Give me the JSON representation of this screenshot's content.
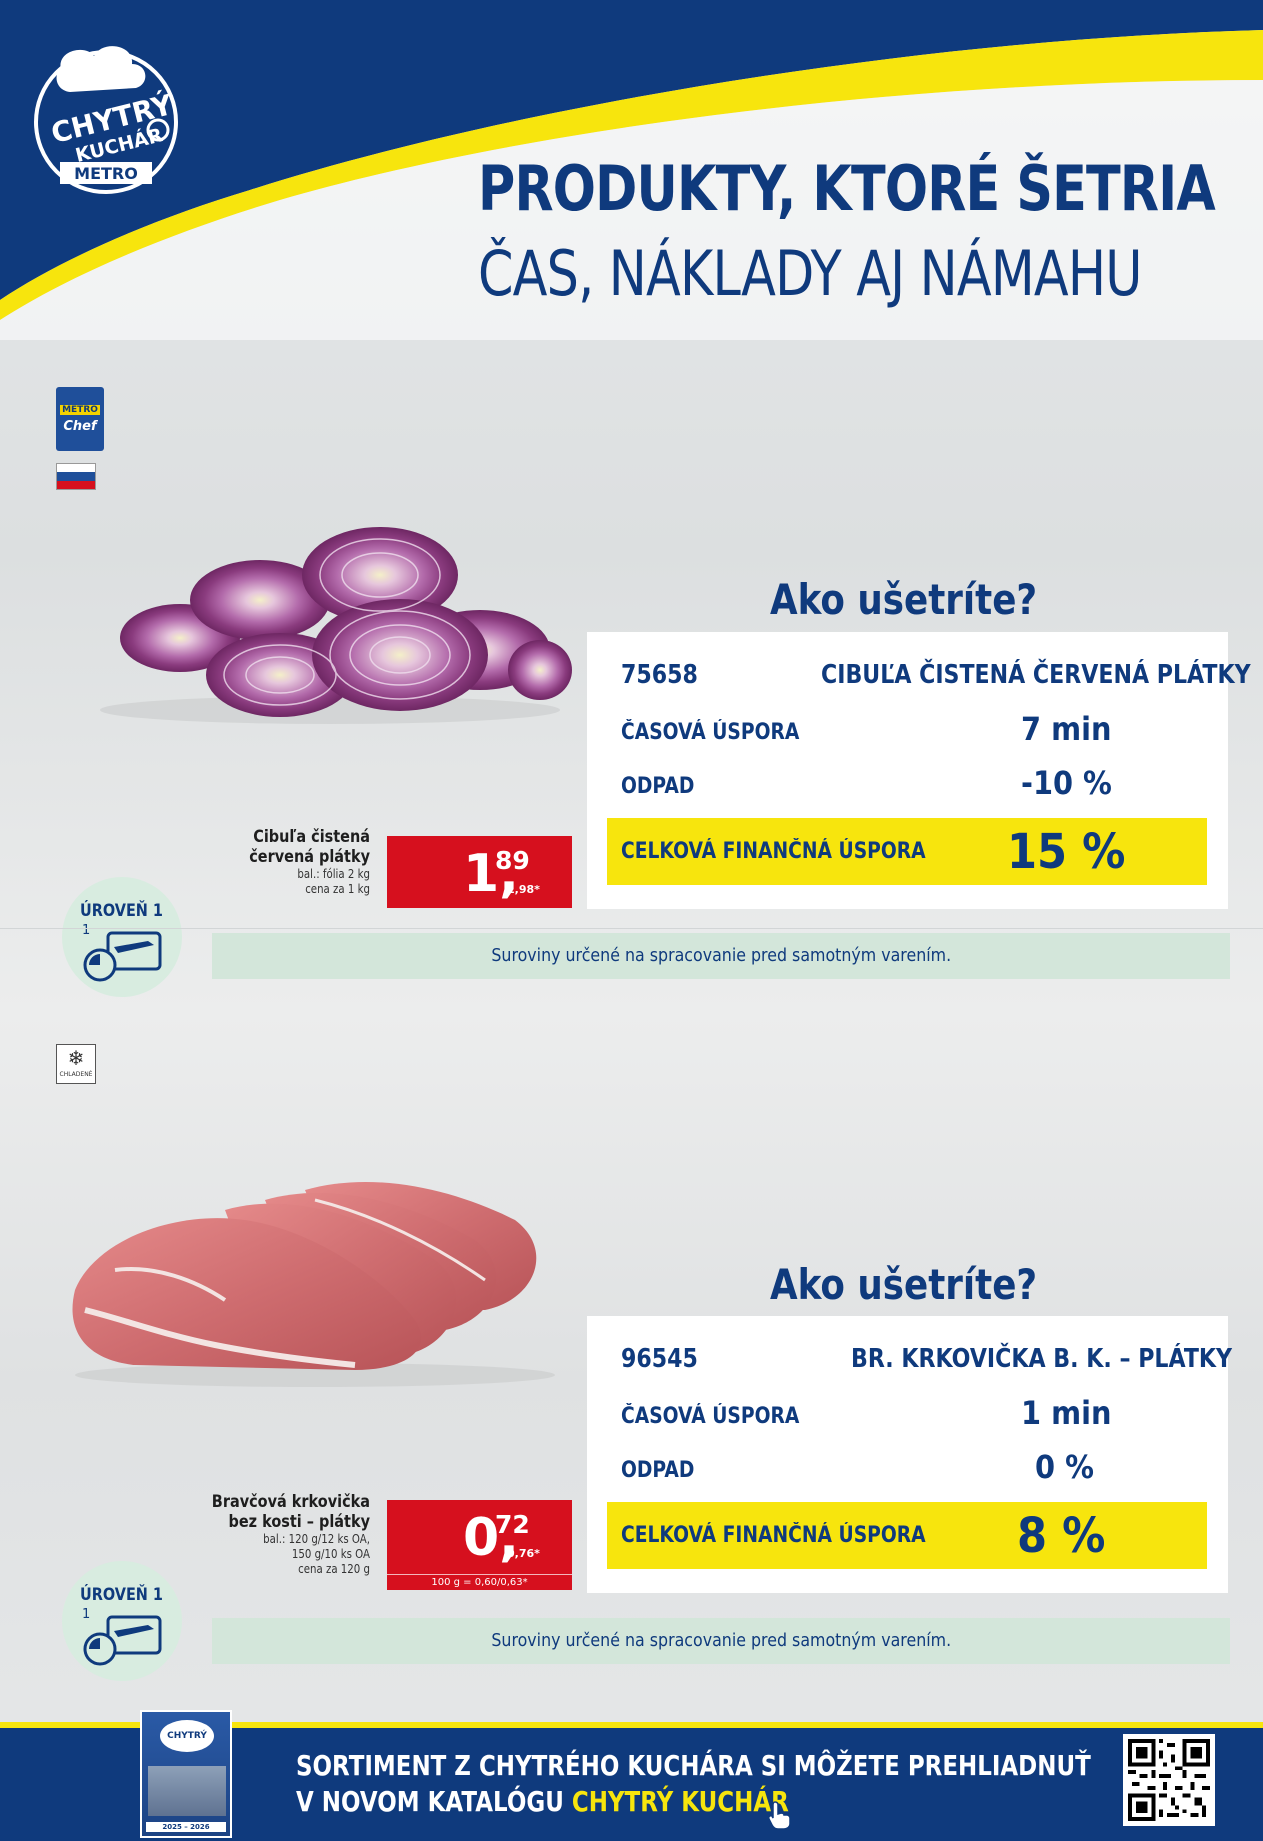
{
  "header": {
    "logo": {
      "line1": "CHYTRÝ",
      "line2": "KUCHÁR",
      "brand": "METRO"
    },
    "headline_line1": "PRODUKTY, KTORÉ ŠETRIA",
    "headline_line2": "ČAS, NÁKLADY AJ NÁMAHU"
  },
  "badges": {
    "metro_chef": {
      "brand": "METRO",
      "sub": "Chef"
    },
    "chilled_label": "CHLADENÉ"
  },
  "products": [
    {
      "ask_title": "Ako ušetríte?",
      "code": "75658",
      "code_name": "CIBUĽA ČISTENÁ ČERVENÁ PLÁTKY",
      "time_label": "ČASOVÁ ÚSPORA",
      "time_value": "7 min",
      "waste_label": "ODPAD",
      "waste_value": "-10 %",
      "total_label": "CELKOVÁ FINANČNÁ ÚSPORA",
      "total_value": "15 %",
      "desc_name_1": "Cibuľa čistená",
      "desc_name_2": "červená plátky",
      "desc_meta_1": "bal.: fólia 2 kg",
      "desc_meta_2": "cena za 1 kg",
      "price_int": "1,",
      "price_dec": "89",
      "price_vat": "1,98*",
      "price_unit": "",
      "level_title": "ÚROVEŇ 1",
      "level_num": "1",
      "info": "Suroviny určené na spracovanie pred samotným varením."
    },
    {
      "ask_title": "Ako ušetríte?",
      "code": "96545",
      "code_name": "BR. KRKOVIČKA B. K. – PLÁTKY",
      "time_label": "ČASOVÁ ÚSPORA",
      "time_value": "1 min",
      "waste_label": "ODPAD",
      "waste_value": "0 %",
      "total_label": "CELKOVÁ FINANČNÁ ÚSPORA",
      "total_value": "8 %",
      "desc_name_1": "Bravčová krkovička",
      "desc_name_2": "bez kosti – plátky",
      "desc_meta_1": "bal.: 120 g/12 ks OA,",
      "desc_meta_2": "150 g/10 ks OA",
      "desc_meta_3": "cena za 120 g",
      "price_int": "0,",
      "price_dec": "72",
      "price_vat": "0,76*",
      "price_unit": "100 g = 0,60/0,63*",
      "level_title": "ÚROVEŇ 1",
      "level_num": "1",
      "info": "Suroviny určené na spracovanie pred samotným varením."
    }
  ],
  "footer": {
    "line1": "SORTIMENT Z CHYTRÉHO KUCHÁRA SI MÔŽETE PREHLIADNUŤ",
    "line2_prefix": "V NOVOM KATALÓGU ",
    "line2_highlight": "CHYTRÝ KUCHÁR",
    "catalog_title": "CHYTRÝ",
    "catalog_year": "2025 – 2026"
  },
  "colors": {
    "brand_blue": "#0f3a7d",
    "brand_yellow": "#f7e50d",
    "price_red": "#d6101e",
    "level_green": "#d3e6da"
  }
}
